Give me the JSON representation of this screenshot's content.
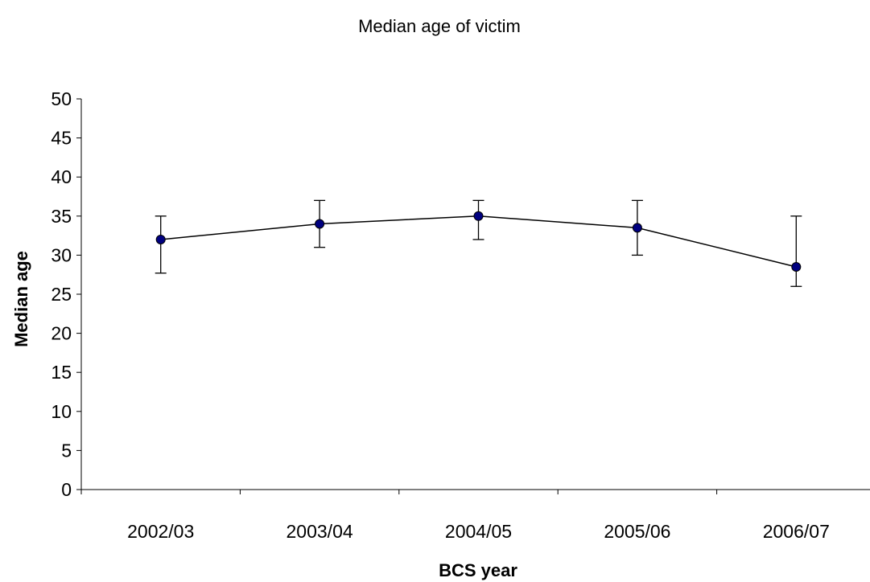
{
  "chart_data": {
    "type": "line",
    "title": "Median age of victim",
    "xlabel": "BCS year",
    "ylabel": "Median age",
    "categories": [
      "2002/03",
      "2003/04",
      "2004/05",
      "2005/06",
      "2006/07"
    ],
    "series": [
      {
        "values": [
          32,
          34,
          35,
          33.5,
          28.5
        ],
        "error_low": [
          27.7,
          31,
          32,
          30,
          26
        ],
        "error_high": [
          35,
          37,
          37,
          37,
          35
        ],
        "color": "#000080"
      }
    ],
    "ylim": [
      0,
      50
    ],
    "yticks": [
      0,
      5,
      10,
      15,
      20,
      25,
      30,
      35,
      40,
      45,
      50
    ],
    "grid": false,
    "legend": "none"
  }
}
